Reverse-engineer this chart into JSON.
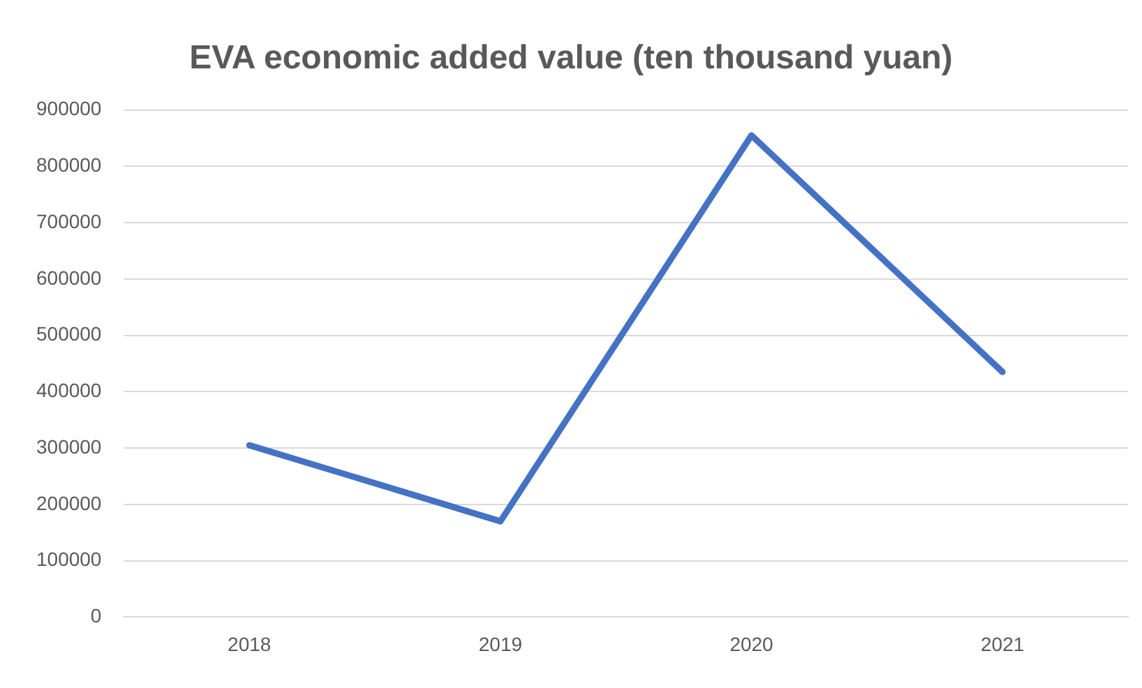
{
  "chart_data": {
    "type": "line",
    "title": "EVA economic added value (ten thousand yuan)",
    "categories": [
      "2018",
      "2019",
      "2020",
      "2021"
    ],
    "series": [
      {
        "color": "#4472c4",
        "values": [
          305000,
          170000,
          855000,
          435000
        ]
      }
    ],
    "ylim": [
      0,
      900000
    ],
    "yticks": [
      0,
      100000,
      200000,
      300000,
      400000,
      500000,
      600000,
      700000,
      800000,
      900000
    ],
    "grid": "y",
    "legend": false,
    "marker": "none",
    "line_style": "solid"
  }
}
